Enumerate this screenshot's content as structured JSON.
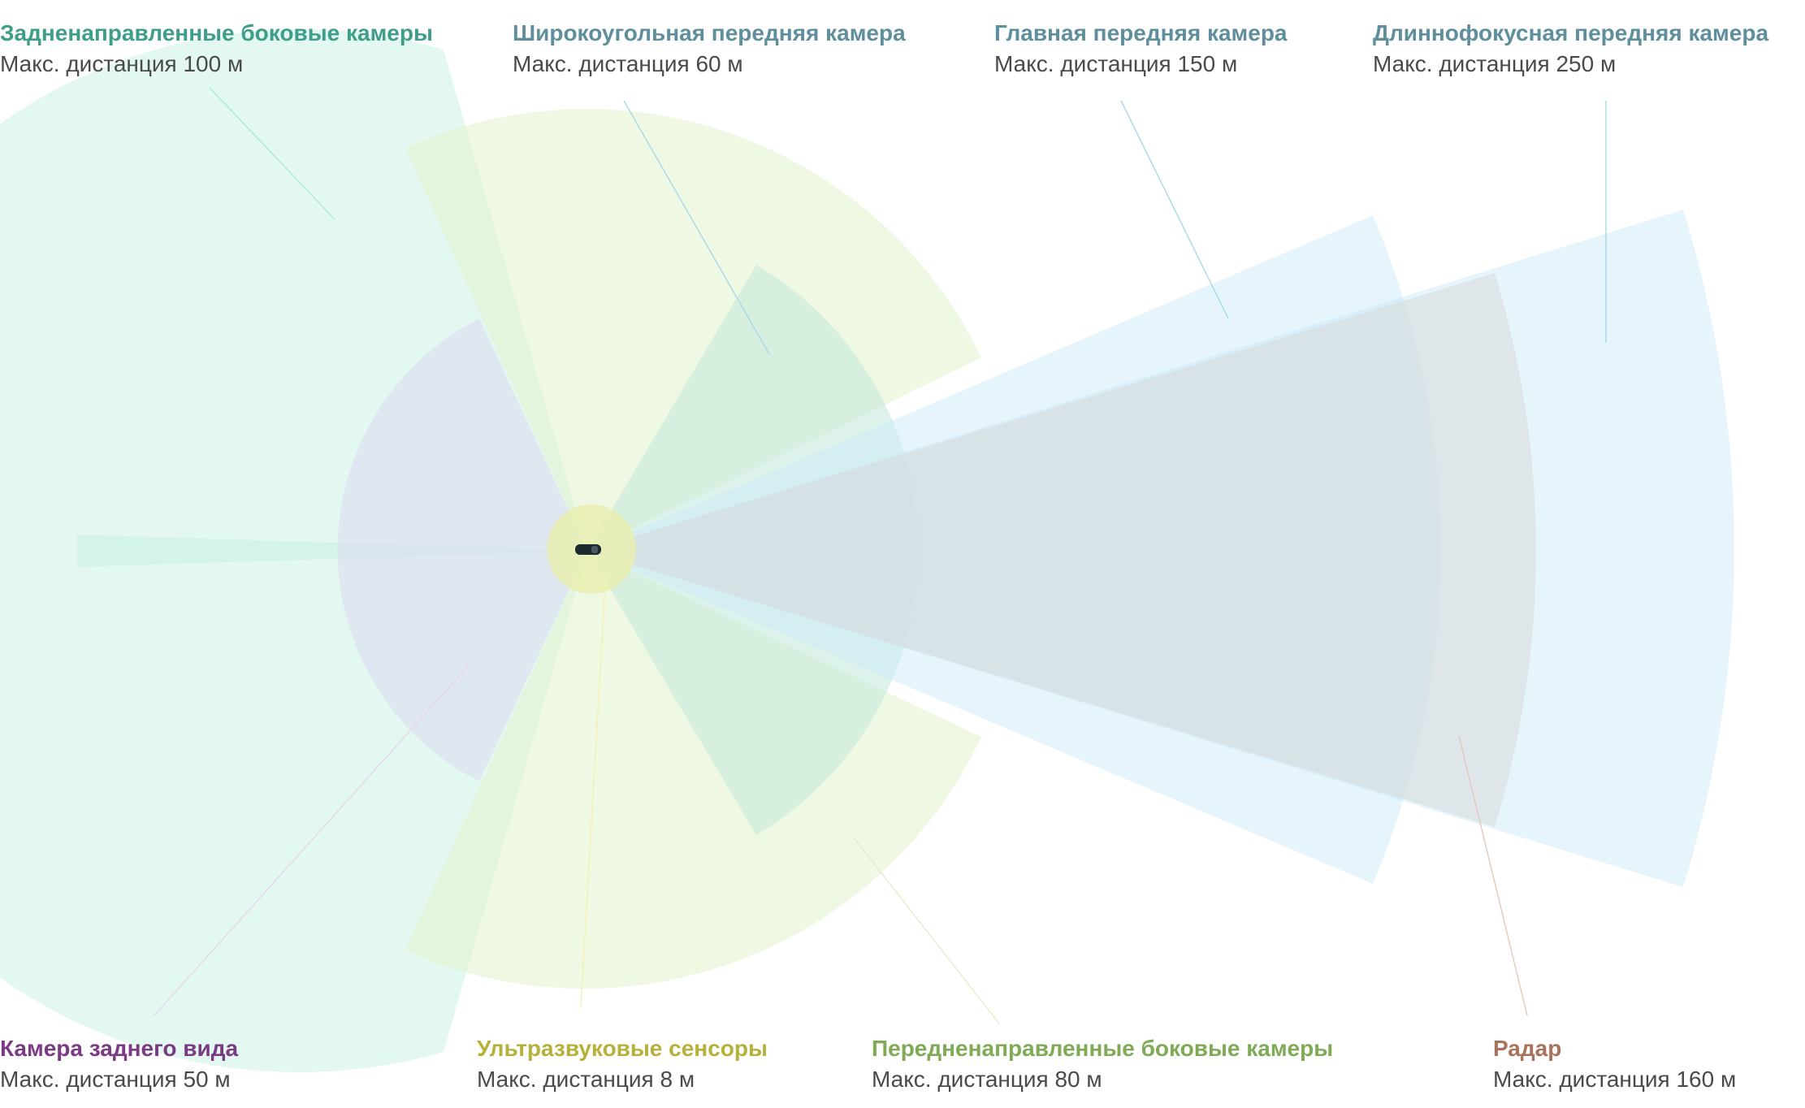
{
  "sensors": [
    {
      "key": "rear_side",
      "title": "Задненаправленные боковые камеры",
      "dist": "Макс. дистанция 100 м",
      "color": "#3e9e8a",
      "fill": "#c9f2e6"
    },
    {
      "key": "wide",
      "title": "Широкоугольная передняя камера",
      "dist": "Макс. дистанция 60 м",
      "color": "#5f8f9c",
      "fill": "#c3e7dc"
    },
    {
      "key": "main",
      "title": "Главная передняя камера",
      "dist": "Макс. дистанция 150 м",
      "color": "#5f8f9c",
      "fill": "#c8e8f8"
    },
    {
      "key": "narrow",
      "title": "Длиннофокусная передняя камера",
      "dist": "Макс. дистанция 250 м",
      "color": "#5f8f9c",
      "fill": "#c8e8f8"
    },
    {
      "key": "rearview",
      "title": "Камера заднего вида",
      "dist": "Макс. дистанция 50 м",
      "color": "#7b3a85",
      "fill": "#dcdcf0"
    },
    {
      "key": "ultra",
      "title": "Ультразвуковые сенсоры",
      "dist": "Макс. дистанция 8 м",
      "color": "#b5b13a",
      "fill": "#e9efb0"
    },
    {
      "key": "fwd_side",
      "title": "Передненаправленные боковые камеры",
      "dist": "Макс. дистанция 80 м",
      "color": "#7faa56",
      "fill": "#e2f2cc"
    },
    {
      "key": "radar",
      "title": "Радар",
      "dist": "Макс. дистанция 160 м",
      "color": "#a8735a",
      "fill": "#d8d8d8"
    }
  ]
}
